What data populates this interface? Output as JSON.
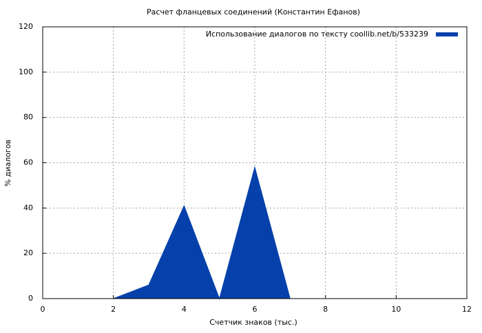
{
  "chart_data": {
    "type": "area",
    "title": "Расчет фланцевых соединений (Константин Ефанов)",
    "x_label": "Счетчик знаков (тыс.)",
    "y_label": "% диалогов",
    "series": [
      {
        "name": "Использование диалогов по тексту  coollib.net/b/533239",
        "color": "#0641ab",
        "x": [
          0,
          1,
          2,
          3,
          4,
          5,
          6,
          7,
          8,
          9,
          10,
          11,
          12
        ],
        "values": [
          0,
          0,
          0,
          6,
          41,
          0,
          58,
          0,
          0,
          0,
          0,
          0,
          0
        ]
      }
    ],
    "xlim": [
      0,
      12
    ],
    "xticks": [
      0,
      2,
      4,
      6,
      8,
      10,
      12
    ],
    "ylim": [
      0,
      120
    ],
    "yticks": [
      0,
      20,
      40,
      60,
      80,
      100,
      120
    ],
    "grid": true,
    "legend": "top-right"
  }
}
